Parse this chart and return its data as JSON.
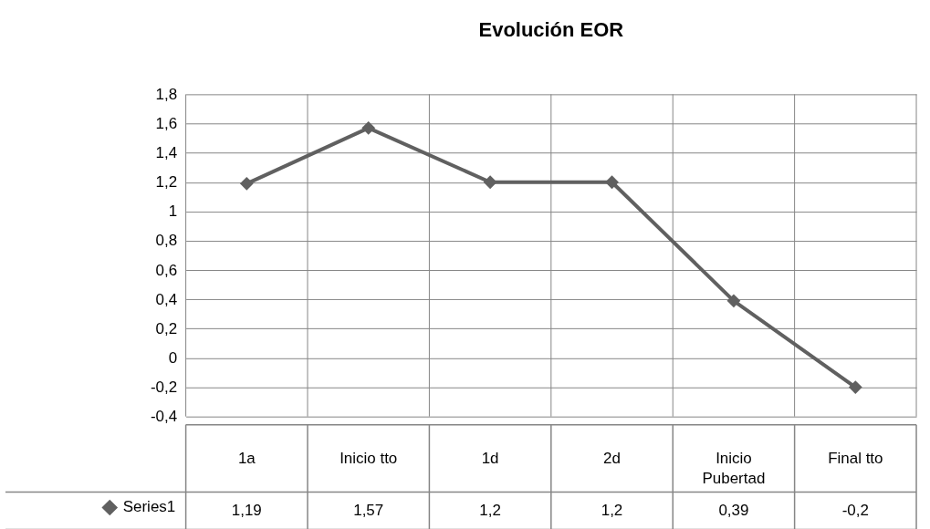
{
  "chart_data": {
    "type": "line",
    "title": "Evolución EOR",
    "categories": [
      "1a",
      "Inicio tto",
      "1d",
      "2d",
      "Inicio Pubertad",
      "Final tto"
    ],
    "series": [
      {
        "name": "Series1",
        "color": "#606060",
        "values": [
          1.19,
          1.57,
          1.2,
          1.2,
          0.39,
          -0.2
        ],
        "value_labels": [
          "1,19",
          "1,57",
          "1,2",
          "1,2",
          "0,39",
          "-0,2"
        ]
      }
    ],
    "ylim": [
      -0.4,
      1.8
    ],
    "yticks": [
      {
        "value": -0.4,
        "label": "-0,4"
      },
      {
        "value": -0.2,
        "label": "-0,2"
      },
      0,
      {
        "value": 0.2,
        "label": "0,2"
      },
      {
        "value": 0.4,
        "label": "0,4"
      },
      {
        "value": 0.6,
        "label": "0,6"
      },
      {
        "value": 0.8,
        "label": "0,8"
      },
      1,
      {
        "value": 1.2,
        "label": "1,2"
      },
      {
        "value": 1.4,
        "label": "1,4"
      },
      {
        "value": 1.6,
        "label": "1,6"
      },
      {
        "value": 1.8,
        "label": "1,8"
      }
    ],
    "grid": true,
    "marker": "diamond",
    "line_style": "solid",
    "legend": "bottom"
  }
}
